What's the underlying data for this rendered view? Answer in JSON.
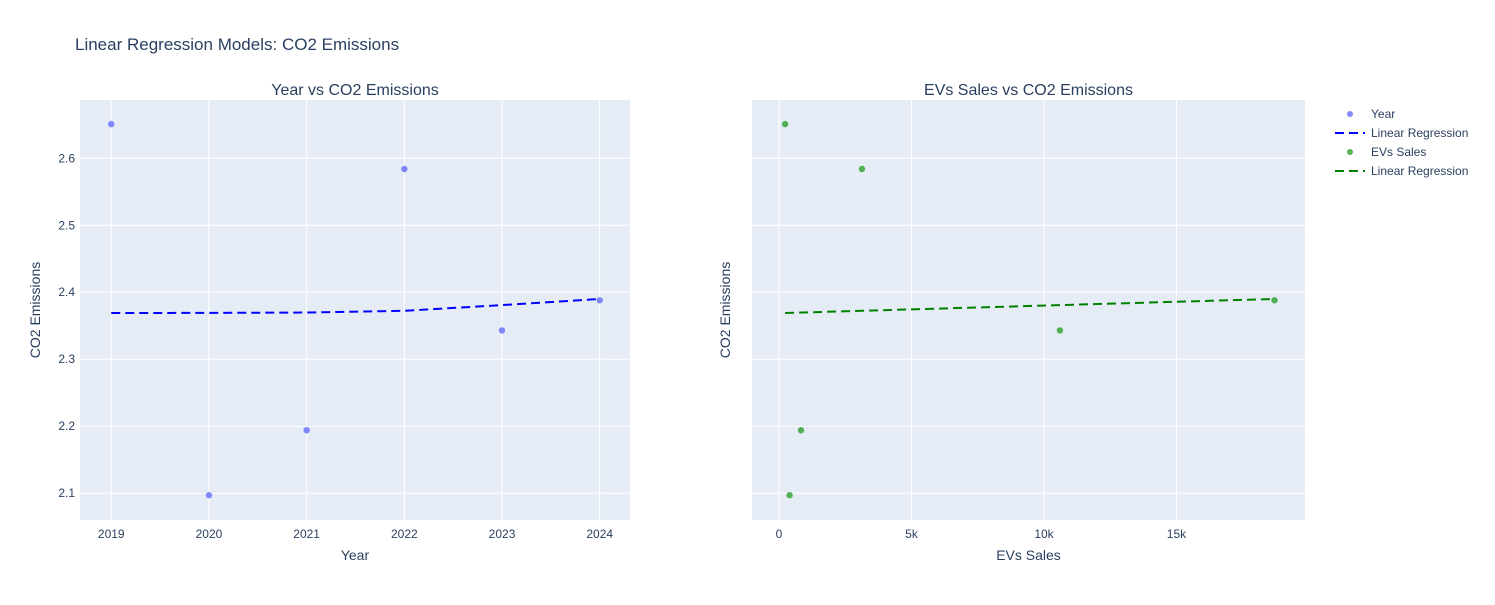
{
  "chart_data": [
    {
      "type": "scatter",
      "title": "Year vs CO2 Emissions",
      "xlabel": "Year",
      "ylabel": "CO2 Emissions",
      "x": [
        2019,
        2020,
        2021,
        2022,
        2023,
        2024
      ],
      "series": [
        {
          "name": "Year",
          "mode": "markers",
          "color": "#636efa",
          "values": [
            2.651,
            2.097,
            2.194,
            2.584,
            2.343,
            2.388
          ]
        },
        {
          "name": "Linear Regression",
          "mode": "lines",
          "dash": "dash",
          "color": "#0000ff",
          "values": [
            2.369,
            2.3692,
            2.3697,
            2.3723,
            2.3808,
            2.39
          ]
        }
      ],
      "xlim": [
        2018.68,
        2024.31
      ],
      "ylim": [
        2.06,
        2.687
      ],
      "xticks": [
        2019,
        2020,
        2021,
        2022,
        2023,
        2024
      ],
      "xtick_labels": [
        "2019",
        "2020",
        "2021",
        "2022",
        "2023",
        "2024"
      ],
      "yticks": [
        2.1,
        2.2,
        2.3,
        2.4,
        2.5,
        2.6
      ],
      "ytick_labels": [
        "2.1",
        "2.2",
        "2.3",
        "2.4",
        "2.5",
        "2.6"
      ],
      "grid": true
    },
    {
      "type": "scatter",
      "title": "EVs Sales vs CO2 Emissions",
      "xlabel": "EVs Sales",
      "ylabel": "CO2 Emissions",
      "x": [
        230,
        400,
        830,
        3130,
        10600,
        18700
      ],
      "series": [
        {
          "name": "EVs Sales",
          "mode": "markers",
          "color": "#2ca02c",
          "values": [
            2.651,
            2.097,
            2.194,
            2.584,
            2.343,
            2.388
          ]
        },
        {
          "name": "Linear Regression",
          "mode": "lines",
          "dash": "dash",
          "color": "#008000",
          "values": [
            2.369,
            2.3692,
            2.3697,
            2.3723,
            2.3808,
            2.39
          ]
        }
      ],
      "xlim": [
        -1020,
        19850
      ],
      "ylim": [
        2.06,
        2.687
      ],
      "xticks": [
        0,
        5000,
        10000,
        15000
      ],
      "xtick_labels": [
        "0",
        "5k",
        "10k",
        "15k"
      ],
      "yticks": [
        2.1,
        2.2,
        2.3,
        2.4,
        2.5,
        2.6
      ],
      "grid": true
    }
  ],
  "figure_title": "Linear Regression Models: CO2 Emissions",
  "legend": {
    "placement": "top-right",
    "items": [
      {
        "label": "Year",
        "kind": "marker",
        "color": "#636efa"
      },
      {
        "label": "Linear Regression",
        "kind": "dash",
        "color": "#0000ff"
      },
      {
        "label": "EVs Sales",
        "kind": "marker",
        "color": "#2ca02c"
      },
      {
        "label": "Linear Regression",
        "kind": "dash",
        "color": "#008000"
      }
    ]
  }
}
